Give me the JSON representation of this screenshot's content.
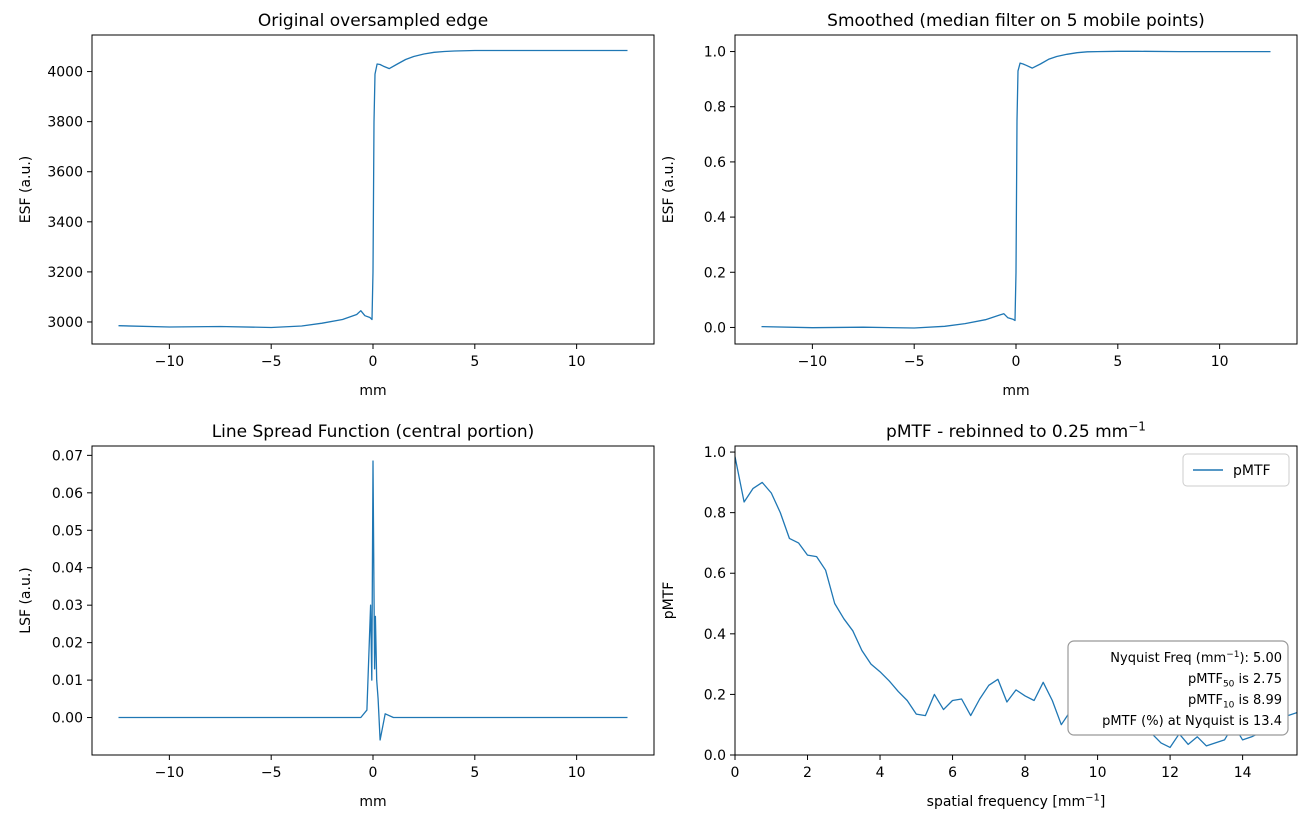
{
  "chart_data": [
    {
      "type": "line",
      "title": "Original oversampled edge",
      "xlabel": "mm",
      "ylabel": "ESF (a.u.)",
      "xlim": [
        -13.8,
        13.8
      ],
      "ylim": [
        2912,
        4146
      ],
      "xticks": [
        -10,
        -5,
        0,
        5,
        10
      ],
      "xtick_labels": [
        "−10",
        "−5",
        "0",
        "5",
        "10"
      ],
      "yticks": [
        3000,
        3200,
        3400,
        3600,
        3800,
        4000
      ],
      "ytick_labels": [
        "3000",
        "3200",
        "3400",
        "3600",
        "3800",
        "4000"
      ],
      "grid": false,
      "series": [
        {
          "color": "#1f77b4",
          "x": [
            -12.5,
            -10,
            -7.5,
            -5,
            -3.5,
            -2.5,
            -1.5,
            -0.8,
            -0.6,
            -0.4,
            -0.15,
            -0.05,
            0.0,
            0.05,
            0.1,
            0.2,
            0.35,
            0.5,
            0.8,
            1.2,
            1.6,
            2.0,
            2.5,
            3.0,
            3.5,
            4.0,
            5.0,
            6.0,
            8.0,
            10.0,
            12.5
          ],
          "y": [
            2985,
            2980,
            2982,
            2978,
            2984,
            2995,
            3010,
            3030,
            3045,
            3025,
            3018,
            3010,
            3200,
            3800,
            3990,
            4030,
            4028,
            4022,
            4012,
            4030,
            4048,
            4060,
            4070,
            4077,
            4080,
            4082,
            4084,
            4084,
            4084,
            4084,
            4084
          ]
        }
      ]
    },
    {
      "type": "line",
      "title": "Smoothed (median filter on 5 mobile points)",
      "xlabel": "mm",
      "ylabel": "ESF (a.u.)",
      "xlim": [
        -13.8,
        13.8
      ],
      "ylim": [
        -0.06,
        1.06
      ],
      "xticks": [
        -10,
        -5,
        0,
        5,
        10
      ],
      "xtick_labels": [
        "−10",
        "−5",
        "0",
        "5",
        "10"
      ],
      "yticks": [
        0.0,
        0.2,
        0.4,
        0.6,
        0.8,
        1.0
      ],
      "ytick_labels": [
        "0.0",
        "0.2",
        "0.4",
        "0.6",
        "0.8",
        "1.0"
      ],
      "grid": false,
      "series": [
        {
          "color": "#1f77b4",
          "x": [
            -12.5,
            -10,
            -7.5,
            -5,
            -3.5,
            -2.5,
            -1.5,
            -0.8,
            -0.6,
            -0.4,
            -0.15,
            -0.05,
            0.0,
            0.05,
            0.1,
            0.2,
            0.35,
            0.5,
            0.8,
            1.2,
            1.6,
            2.0,
            2.5,
            3.0,
            3.5,
            4.0,
            5.0,
            6.0,
            8.0,
            10.0,
            12.5
          ],
          "y": [
            0.003,
            -0.001,
            0.001,
            -0.002,
            0.004,
            0.014,
            0.028,
            0.045,
            0.05,
            0.035,
            0.03,
            0.025,
            0.2,
            0.75,
            0.93,
            0.958,
            0.955,
            0.95,
            0.94,
            0.955,
            0.972,
            0.982,
            0.99,
            0.996,
            0.999,
            1.0,
            1.001,
            1.001,
            1.0,
            1.0,
            1.0
          ]
        }
      ]
    },
    {
      "type": "line",
      "title": "Line Spread Function (central portion)",
      "xlabel": "mm",
      "ylabel": "LSF (a.u.)",
      "xlim": [
        -13.8,
        13.8
      ],
      "ylim": [
        -0.01,
        0.0725
      ],
      "xticks": [
        -10,
        -5,
        0,
        5,
        10
      ],
      "xtick_labels": [
        "−10",
        "−5",
        "0",
        "5",
        "10"
      ],
      "yticks": [
        0.0,
        0.01,
        0.02,
        0.03,
        0.04,
        0.05,
        0.06,
        0.07
      ],
      "ytick_labels": [
        "0.00",
        "0.01",
        "0.02",
        "0.03",
        "0.04",
        "0.05",
        "0.06",
        "0.07"
      ],
      "grid": false,
      "series": [
        {
          "color": "#1f77b4",
          "x": [
            -12.5,
            -10,
            -8.5,
            -7,
            -5.5,
            -4,
            -3,
            -2,
            -1.2,
            -0.6,
            -0.3,
            -0.12,
            -0.06,
            0.0,
            0.04,
            0.08,
            0.12,
            0.18,
            0.25,
            0.35,
            0.6,
            1.0,
            2.0,
            3.0,
            4.0,
            5.0,
            6.0,
            8.0,
            10.0,
            12.5
          ],
          "y": [
            0.0,
            0.0,
            0.0,
            0.0,
            0.0,
            0.0,
            0.0,
            0.0,
            0.0,
            0.0,
            0.002,
            0.03,
            0.01,
            0.0685,
            0.04,
            0.013,
            0.027,
            0.01,
            0.005,
            -0.006,
            0.001,
            0.0,
            0.0,
            0.0,
            0.0,
            0.0,
            0.0,
            0.0,
            0.0,
            0.0
          ]
        }
      ]
    },
    {
      "type": "line",
      "title": "pMTF - rebinned to 0.25 mm⁻¹",
      "xlabel": "spatial frequency [mm⁻¹]",
      "ylabel": "pMTF",
      "xlim": [
        0,
        15.5
      ],
      "ylim": [
        0,
        1.02
      ],
      "xticks": [
        0,
        2,
        4,
        6,
        8,
        10,
        12,
        14
      ],
      "xtick_labels": [
        "0",
        "2",
        "4",
        "6",
        "8",
        "10",
        "12",
        "14"
      ],
      "yticks": [
        0.0,
        0.2,
        0.4,
        0.6,
        0.8,
        1.0
      ],
      "ytick_labels": [
        "0.0",
        "0.2",
        "0.4",
        "0.6",
        "0.8",
        "1.0"
      ],
      "grid": false,
      "legend": {
        "placement": "top-right",
        "entries": [
          "pMTF"
        ]
      },
      "annotation": {
        "placement": "bottom-right",
        "lines": [
          "Nyquist Freq (mm⁻¹): 5.00",
          "pMTF₅₀ is 2.75",
          "pMTF₁₀ is 8.99",
          "pMTF (%) at Nyquist is 13.4"
        ]
      },
      "series": [
        {
          "name": "pMTF",
          "color": "#1f77b4",
          "x": [
            0.0,
            0.25,
            0.5,
            0.75,
            1.0,
            1.25,
            1.5,
            1.75,
            2.0,
            2.25,
            2.5,
            2.75,
            3.0,
            3.25,
            3.5,
            3.75,
            4.0,
            4.25,
            4.5,
            4.75,
            5.0,
            5.25,
            5.5,
            5.75,
            6.0,
            6.25,
            6.5,
            6.75,
            7.0,
            7.25,
            7.5,
            7.75,
            8.0,
            8.25,
            8.5,
            8.75,
            9.0,
            9.25,
            9.5,
            9.75,
            10.0,
            10.25,
            10.5,
            10.75,
            11.0,
            11.25,
            11.5,
            11.75,
            12.0,
            12.25,
            12.5,
            12.75,
            13.0,
            13.25,
            13.5,
            13.75,
            14.0,
            14.25,
            14.5,
            14.75,
            15.0,
            15.25,
            15.5
          ],
          "y": [
            0.985,
            0.835,
            0.88,
            0.9,
            0.865,
            0.8,
            0.715,
            0.7,
            0.66,
            0.655,
            0.61,
            0.5,
            0.45,
            0.41,
            0.345,
            0.3,
            0.275,
            0.245,
            0.21,
            0.18,
            0.135,
            0.13,
            0.2,
            0.15,
            0.18,
            0.185,
            0.13,
            0.185,
            0.23,
            0.25,
            0.175,
            0.215,
            0.195,
            0.18,
            0.24,
            0.18,
            0.1,
            0.145,
            0.075,
            0.09,
            0.085,
            0.1,
            0.12,
            0.09,
            0.08,
            0.11,
            0.07,
            0.04,
            0.025,
            0.07,
            0.035,
            0.06,
            0.03,
            0.04,
            0.05,
            0.1,
            0.05,
            0.06,
            0.075,
            0.09,
            0.11,
            0.13,
            0.14
          ]
        }
      ]
    }
  ]
}
